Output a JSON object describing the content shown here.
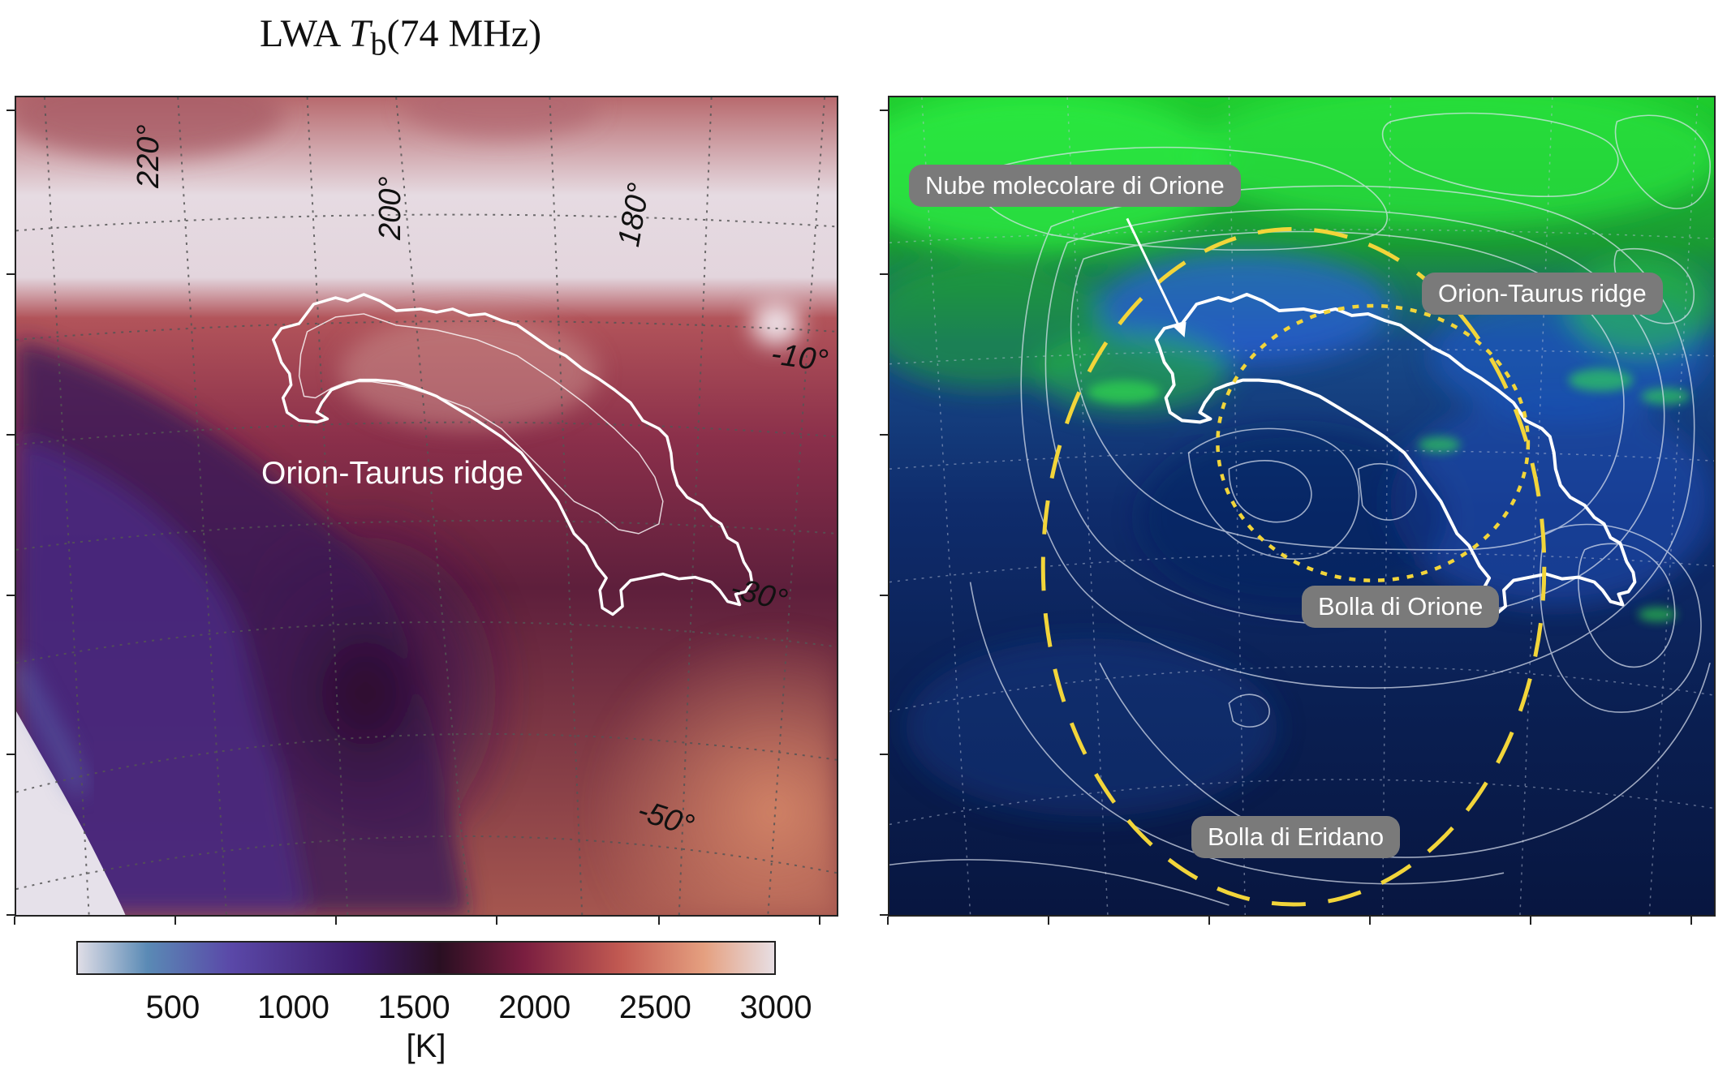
{
  "title": {
    "prefix": "LWA ",
    "symbol": "T",
    "sub": "b",
    "suffix": "(74 MHz)"
  },
  "left_panel": {
    "longitude_labels": [
      "220°",
      "200°",
      "180°"
    ],
    "latitude_labels": [
      "-10°",
      "-30°",
      "-50°"
    ],
    "ridge_label": "Orion-Taurus ridge"
  },
  "right_panel": {
    "labels": {
      "molecular_cloud": "Nube molecolare di Orione",
      "ridge": "Orion-Taurus ridge",
      "orion_bubble": "Bolla di Orione",
      "eridanus_bubble": "Bolla di Eridano"
    }
  },
  "colorbar": {
    "ticks": [
      "500",
      "1000",
      "1500",
      "2000",
      "2500",
      "3000"
    ],
    "tick_values": [
      500,
      1000,
      1500,
      2000,
      2500,
      3000
    ],
    "range": [
      100,
      3000
    ],
    "unit": "[K]",
    "colormap": [
      "#dfdde6",
      "#5a8ab5",
      "#5a48a8",
      "#3e1c6b",
      "#2a0f22",
      "#7a1e40",
      "#c25a52",
      "#e5a080",
      "#e7dee3"
    ]
  },
  "colors": {
    "contour": "#ffffff",
    "bubble_outline": "#f2d53a",
    "label_pill": "#7a7a7a",
    "hi_green": "#22e83a",
    "halpha_blue": "#1e4fd0"
  }
}
